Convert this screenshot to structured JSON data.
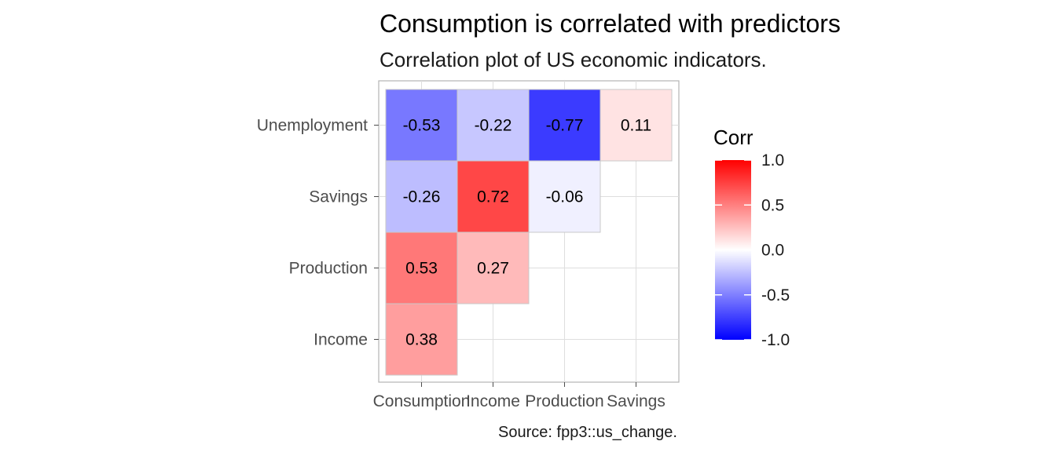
{
  "chart_data": {
    "type": "heatmap",
    "title": "Consumption is correlated with predictors",
    "subtitle": "Correlation plot of US economic indicators.",
    "caption": "Source: fpp3::us_change.",
    "x_categories": [
      "Consumption",
      "Income",
      "Production",
      "Savings"
    ],
    "y_categories": [
      "Income",
      "Production",
      "Savings",
      "Unemployment"
    ],
    "cells": [
      {
        "x": "Consumption",
        "y": "Income",
        "value": 0.38,
        "label": "0.38"
      },
      {
        "x": "Consumption",
        "y": "Production",
        "value": 0.53,
        "label": "0.53"
      },
      {
        "x": "Income",
        "y": "Production",
        "value": 0.27,
        "label": "0.27"
      },
      {
        "x": "Consumption",
        "y": "Savings",
        "value": -0.26,
        "label": "-0.26"
      },
      {
        "x": "Income",
        "y": "Savings",
        "value": 0.72,
        "label": "0.72"
      },
      {
        "x": "Production",
        "y": "Savings",
        "value": -0.06,
        "label": "-0.06"
      },
      {
        "x": "Consumption",
        "y": "Unemployment",
        "value": -0.53,
        "label": "-0.53"
      },
      {
        "x": "Income",
        "y": "Unemployment",
        "value": -0.22,
        "label": "-0.22"
      },
      {
        "x": "Production",
        "y": "Unemployment",
        "value": -0.77,
        "label": "-0.77"
      },
      {
        "x": "Savings",
        "y": "Unemployment",
        "value": 0.11,
        "label": "0.11"
      }
    ],
    "legend": {
      "title": "Corr",
      "ticks": [
        "1.0",
        "0.5",
        "0.0",
        "-0.5",
        "-1.0"
      ],
      "range": [
        -1,
        1
      ],
      "placement": "right"
    },
    "colors": {
      "low": "#0000FF",
      "mid": "#FFFFFF",
      "high": "#FF0000"
    },
    "grid": true
  }
}
